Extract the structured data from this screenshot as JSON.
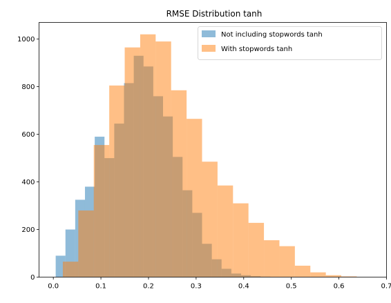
{
  "chart_data": {
    "type": "bar",
    "subtype": "histogram-overlay",
    "title": "RMSE Distribution tanh",
    "xlabel": "",
    "ylabel": "",
    "xlim": [
      -0.03,
      0.7
    ],
    "ylim": [
      0,
      1070
    ],
    "xticks": [
      0.0,
      0.1,
      0.2,
      0.3,
      0.4,
      0.5,
      0.6,
      0.7
    ],
    "yticks": [
      0,
      200,
      400,
      600,
      800,
      1000
    ],
    "xtick_labels": [
      "0.0",
      "0.1",
      "0.2",
      "0.3",
      "0.4",
      "0.5",
      "0.6",
      "0.7"
    ],
    "ytick_labels": [
      "0",
      "200",
      "400",
      "600",
      "800",
      "1000"
    ],
    "grid": false,
    "legend_position": "top-right",
    "series": [
      {
        "name": "Not including stopwords tanh",
        "color": "#1f77b4",
        "opacity": 0.5,
        "bin_edges": [
          0.005,
          0.0255,
          0.046,
          0.0665,
          0.087,
          0.1075,
          0.128,
          0.1485,
          0.169,
          0.1895,
          0.21,
          0.2305,
          0.251,
          0.2715,
          0.292,
          0.3125,
          0.333,
          0.3535,
          0.374,
          0.3945,
          0.415,
          0.4355,
          0.456,
          0.4765,
          0.497
        ],
        "counts": [
          90,
          200,
          325,
          380,
          590,
          500,
          645,
          815,
          930,
          885,
          760,
          675,
          505,
          365,
          270,
          140,
          75,
          35,
          15,
          8,
          4,
          2,
          1,
          1
        ]
      },
      {
        "name": "With stopwords tanh",
        "color": "#ff7f0e",
        "opacity": 0.5,
        "bin_edges": [
          0.02,
          0.0525,
          0.085,
          0.1175,
          0.15,
          0.1825,
          0.215,
          0.2475,
          0.28,
          0.3125,
          0.345,
          0.3775,
          0.41,
          0.4425,
          0.475,
          0.5075,
          0.54,
          0.5725,
          0.605,
          0.6375
        ],
        "counts": [
          65,
          280,
          555,
          805,
          965,
          1020,
          990,
          785,
          665,
          485,
          385,
          310,
          228,
          155,
          130,
          48,
          20,
          8,
          3
        ]
      }
    ]
  }
}
